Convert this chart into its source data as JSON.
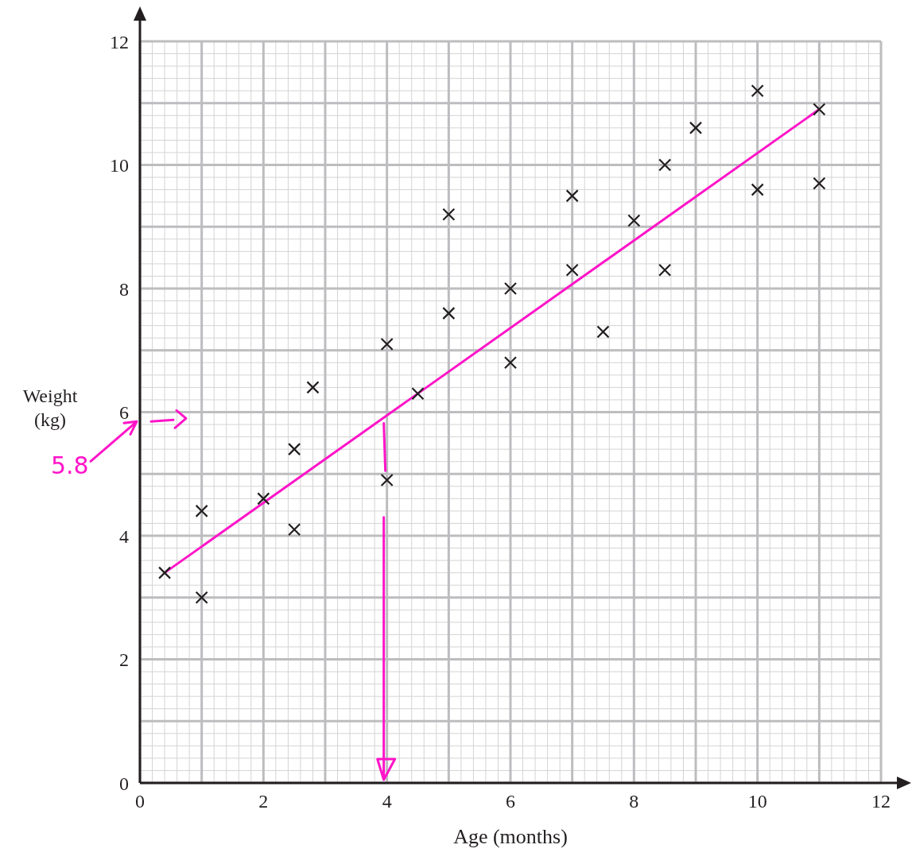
{
  "chart_data": {
    "type": "scatter",
    "xlabel": "Age (months)",
    "ylabel": "Weight (kg)",
    "xlim": [
      0,
      12
    ],
    "ylim": [
      0,
      12
    ],
    "xticks": [
      0,
      2,
      4,
      6,
      8,
      10,
      12
    ],
    "yticks": [
      0,
      2,
      4,
      6,
      8,
      10,
      12
    ],
    "grid": true,
    "series": [
      {
        "color": "#231f20",
        "marker": "cross",
        "x": [
          0.4,
          1,
          1,
          2,
          2.5,
          2.5,
          2.8,
          4,
          4,
          4.5,
          5,
          5,
          6,
          6,
          7,
          7,
          7.5,
          8,
          8.5,
          8.5,
          9,
          10,
          10,
          11,
          11
        ],
        "values": [
          3.4,
          4.4,
          3.0,
          4.6,
          5.4,
          4.1,
          6.4,
          7.1,
          4.9,
          6.3,
          9.2,
          7.6,
          8.0,
          6.8,
          9.5,
          8.3,
          7.3,
          9.1,
          10.0,
          8.3,
          10.6,
          11.2,
          9.6,
          10.9,
          9.7
        ]
      },
      {
        "type": "line",
        "color": "#ff14c8",
        "x": [
          0.4,
          11
        ],
        "values": [
          3.4,
          10.9
        ]
      }
    ],
    "annotations": [
      "5.8"
    ]
  }
}
